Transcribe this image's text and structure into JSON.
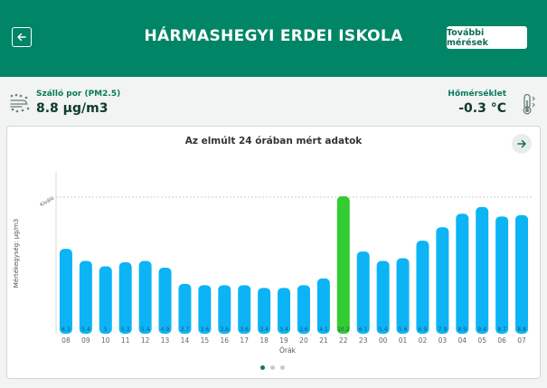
{
  "header": {
    "title": "HÁRMASHEGYI ERDEI ISKOLA",
    "more_button": "További mérések",
    "back_icon": "arrow-left-icon"
  },
  "stats": {
    "pm": {
      "label": "Szálló por (PM2.5)",
      "value": "8.8 µg/m3",
      "icon": "dust-wind-icon"
    },
    "temp": {
      "label": "Hőmérséklet",
      "value": "-0.3 °C",
      "icon": "thermometer-icon"
    }
  },
  "chart_title": "Az elmúlt 24 órában mért adatok",
  "colors": {
    "header": "#008566",
    "bar": "#0cb4f6",
    "bar_highlight": "#33cc33"
  },
  "chart_data": {
    "type": "bar",
    "title": "Az elmúlt 24 órában mért adatok",
    "xlabel": "Órák",
    "ylabel": "Mértékegység: µg/m3",
    "reference_line": {
      "label": "Kiváló",
      "value": 10
    },
    "categories": [
      "08",
      "09",
      "10",
      "11",
      "12",
      "13",
      "14",
      "15",
      "16",
      "17",
      "18",
      "19",
      "20",
      "21",
      "22",
      "23",
      "00",
      "01",
      "02",
      "03",
      "04",
      "05",
      "06",
      "07"
    ],
    "values": [
      6.3,
      5.4,
      5,
      5.3,
      5.4,
      4.9,
      3.7,
      3.6,
      3.6,
      3.6,
      3.4,
      3.4,
      3.6,
      4.1,
      10.2,
      6.1,
      5.4,
      5.6,
      6.9,
      7.9,
      8.9,
      9.4,
      8.7,
      8.8
    ],
    "value_labels": [
      "6.3",
      "5.4",
      "5",
      "5.3",
      "5.4",
      "4.9",
      "3.7",
      "3.6",
      "3.6",
      "3.6",
      "3.4",
      "3.4",
      "3.6",
      "4.1",
      "10.2",
      "6.1",
      "5.4",
      "5.6",
      "6.9",
      "7.9",
      "8.9",
      "9.4",
      "8.7",
      "8.8"
    ],
    "highlight_index": 14,
    "grid": false
  },
  "pagination": {
    "count": 3,
    "active": 0
  }
}
